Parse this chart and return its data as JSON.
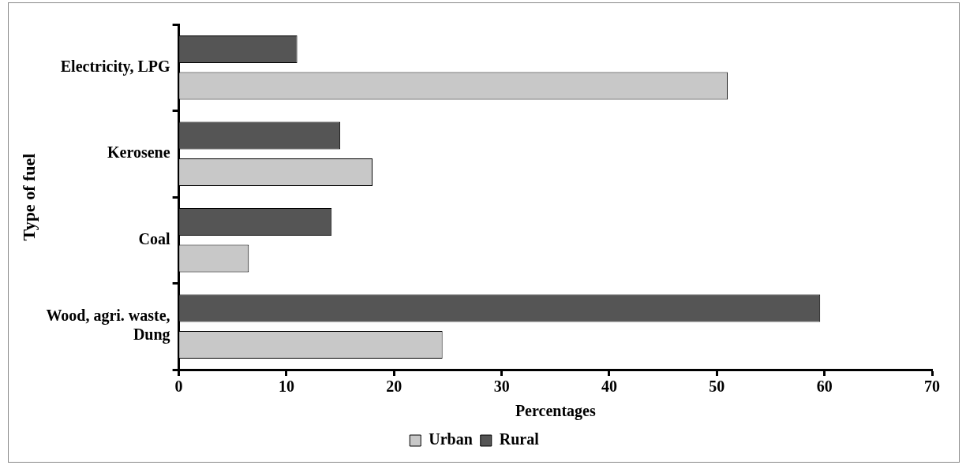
{
  "chart_data": {
    "type": "bar",
    "orientation": "horizontal",
    "xlabel": "Percentages",
    "ylabel": "Type of fuel",
    "categories": [
      "Electricity, LPG",
      "Kerosene",
      "Coal",
      "Wood, agri. waste, Dung"
    ],
    "series": [
      {
        "name": "Urban",
        "color": "#c8c8c8",
        "values": [
          51,
          18,
          6.5,
          24.5
        ]
      },
      {
        "name": "Rural",
        "color": "#555555",
        "values": [
          11,
          15,
          14.2,
          59.6
        ]
      }
    ],
    "xlim": [
      0,
      70
    ],
    "xticks": [
      0,
      10,
      20,
      30,
      40,
      50,
      60,
      70
    ],
    "grid": false,
    "legend": "bottom"
  }
}
